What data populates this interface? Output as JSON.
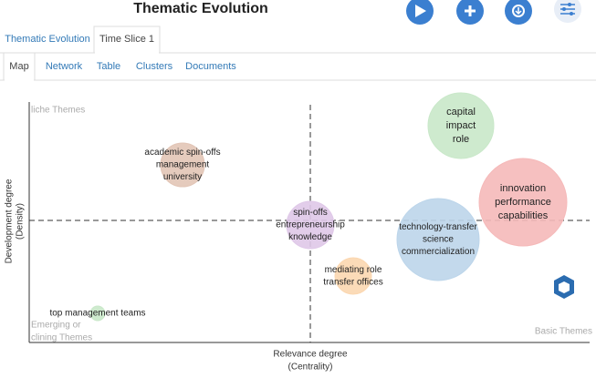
{
  "header": {
    "title": "Thematic Evolution"
  },
  "tabs": [
    "Thematic Evolution",
    "Time Slice 1"
  ],
  "subtabs": [
    "Map",
    "Network",
    "Table",
    "Clusters",
    "Documents"
  ],
  "map": {
    "quadrants": {
      "niche": "liche Themes",
      "emerging": [
        "Emerging or",
        "clining Themes"
      ],
      "basic": "Basic Themes"
    },
    "y_label": [
      "Development degree",
      "(Density)"
    ],
    "x_label": [
      "Relevance degree",
      "(Centrality)"
    ],
    "clusters": [
      {
        "label": [
          "capital",
          "impact",
          "role"
        ],
        "color": "#c9e8c9"
      },
      {
        "label": [
          "innovation",
          "performance",
          "capabilities"
        ],
        "color": "#f5b9b9"
      },
      {
        "label": [
          "technology-transfer",
          "science",
          "commercialization"
        ],
        "color": "#bcd5ea"
      },
      {
        "label": [
          "spin-offs",
          "entrepreneurship",
          "knowledge"
        ],
        "color": "#dfc8e8"
      },
      {
        "label": [
          "academic spin-offs",
          "management",
          "university"
        ],
        "color": "#e2c5b6"
      },
      {
        "label": [
          "mediating role",
          "transfer offices"
        ],
        "color": "#fbd7b0"
      },
      {
        "label": [
          "top management teams"
        ],
        "color": "#c9e8c9"
      }
    ]
  }
}
